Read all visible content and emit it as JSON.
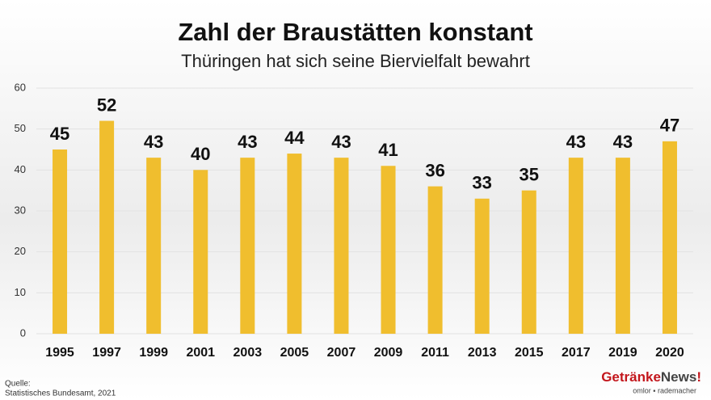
{
  "chart_data": {
    "type": "bar",
    "title": "Zahl der Braustätten konstant",
    "subtitle": "Thüringen hat sich seine Biervielfalt bewahrt",
    "categories": [
      "1995",
      "1997",
      "1999",
      "2001",
      "2003",
      "2005",
      "2007",
      "2009",
      "2011",
      "2013",
      "2015",
      "2017",
      "2019",
      "2020"
    ],
    "values": [
      45,
      52,
      43,
      40,
      43,
      44,
      43,
      41,
      36,
      33,
      35,
      43,
      43,
      47
    ],
    "color": "#f0be2e",
    "ylim": [
      0,
      60
    ],
    "yticks": [
      0,
      10,
      20,
      30,
      40,
      50,
      60
    ],
    "grid": true,
    "source": [
      "Quelle:",
      "Statistisches Bundesamt, 2021"
    ]
  },
  "logo": {
    "name": [
      "Getränke",
      "News",
      "!"
    ],
    "tagline": "omlor ▪ rademacher"
  }
}
